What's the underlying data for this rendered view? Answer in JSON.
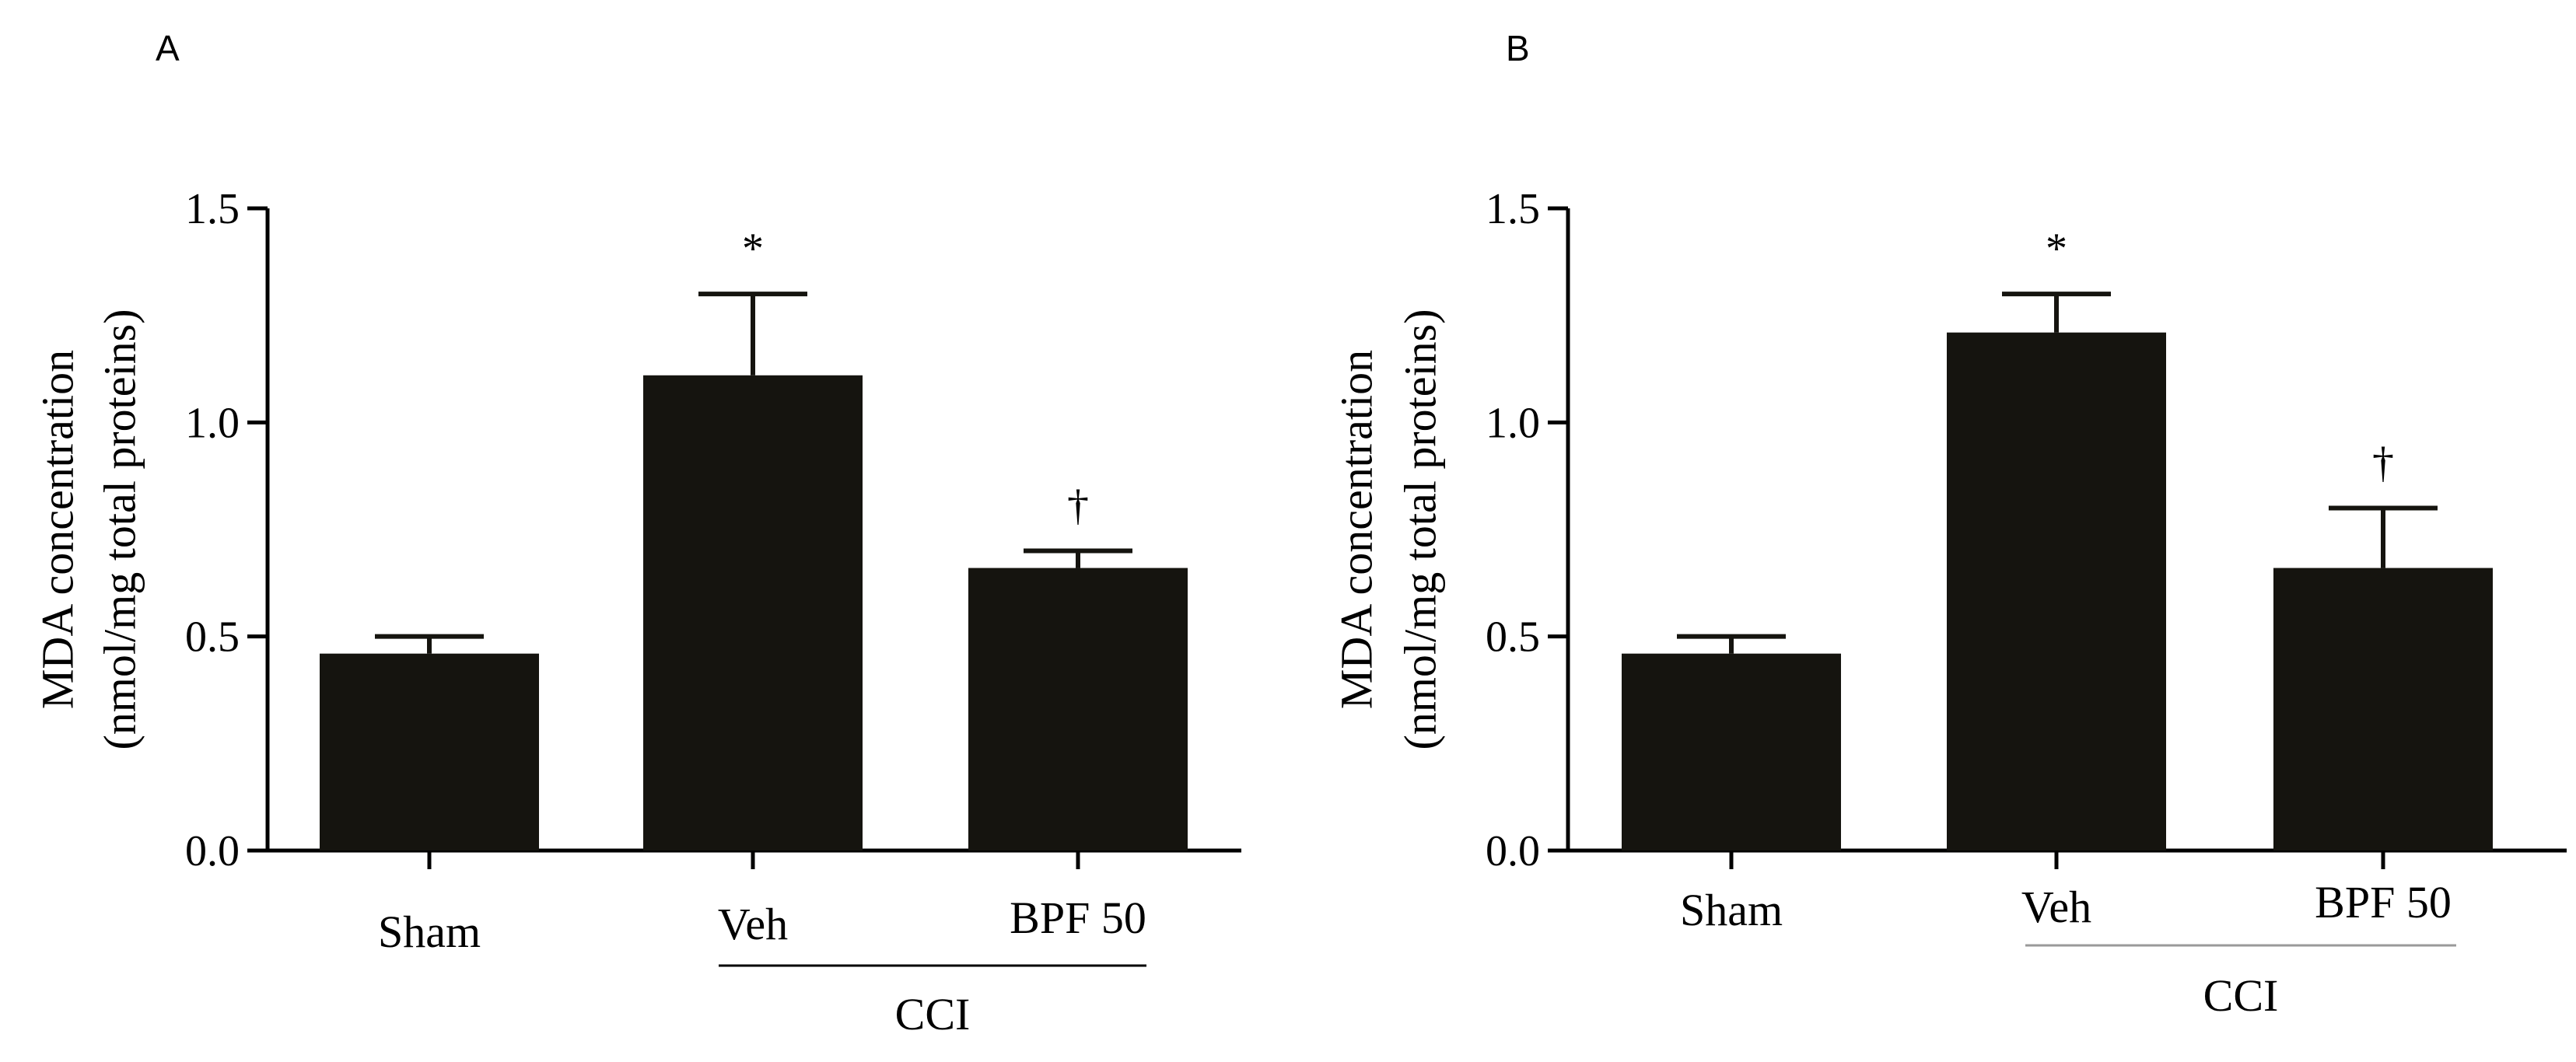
{
  "figure": {
    "bar_color": "#15140f",
    "axis_color": "#000000",
    "group_line_colors": [
      "#000000",
      "#9a9a9a"
    ]
  },
  "chart_data": [
    {
      "panel": "A",
      "type": "bar",
      "ylabel_line1": "MDA concentration",
      "ylabel_line2": "(nmol/mg total proteins)",
      "ylim": [
        0.0,
        1.5
      ],
      "yticks": [
        0.0,
        0.5,
        1.0,
        1.5
      ],
      "ytick_labels": [
        "0.0",
        "0.5",
        "1.0",
        "1.5"
      ],
      "categories": [
        "Sham",
        "Veh",
        "BPF 50"
      ],
      "values": [
        0.46,
        1.11,
        0.66
      ],
      "errors": [
        0.04,
        0.19,
        0.04
      ],
      "annotations": [
        "",
        "*",
        "†"
      ],
      "group_label": "CCI",
      "group_span": [
        "Veh",
        "BPF 50"
      ]
    },
    {
      "panel": "B",
      "type": "bar",
      "ylabel_line1": "MDA concentration",
      "ylabel_line2": "(nmol/mg total proteins)",
      "ylim": [
        0.0,
        1.5
      ],
      "yticks": [
        0.0,
        0.5,
        1.0,
        1.5
      ],
      "ytick_labels": [
        "0.0",
        "0.5",
        "1.0",
        "1.5"
      ],
      "categories": [
        "Sham",
        "Veh",
        "BPF 50"
      ],
      "values": [
        0.46,
        1.21,
        0.66
      ],
      "errors": [
        0.04,
        0.09,
        0.14
      ],
      "annotations": [
        "",
        "*",
        "†"
      ],
      "group_label": "CCI",
      "group_span": [
        "Veh",
        "BPF 50"
      ]
    }
  ]
}
